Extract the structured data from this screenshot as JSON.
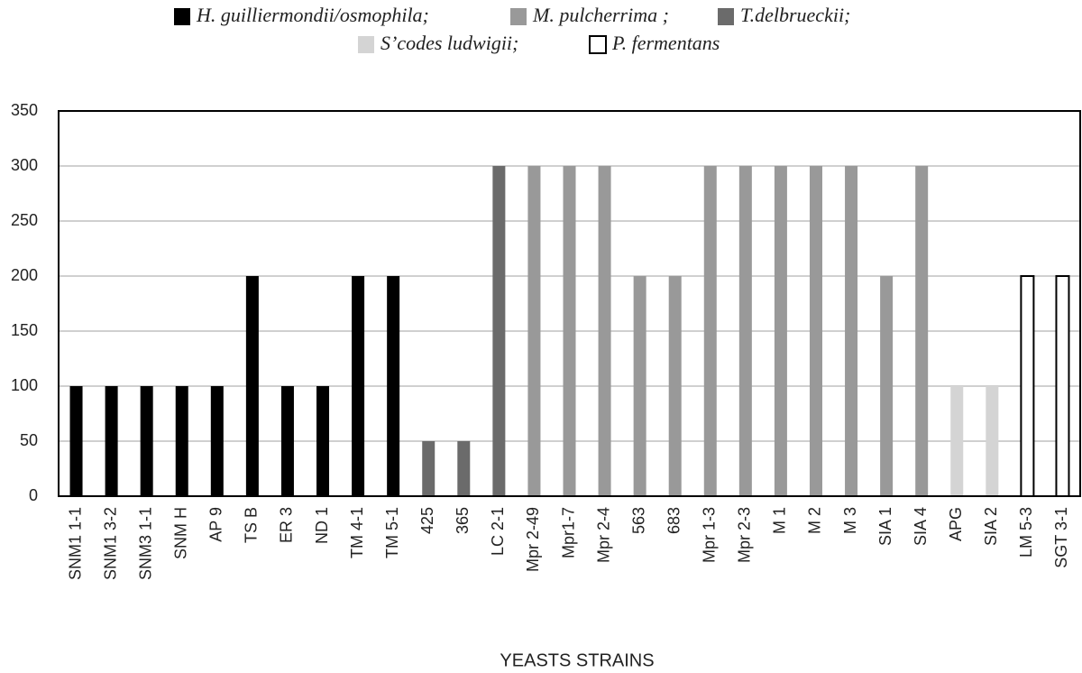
{
  "chart_data": {
    "type": "bar",
    "x_label": "YEASTS STRAINS",
    "categories": [
      "SNM1 1-1",
      "SNM1 3-2",
      "SNM3 1-1",
      "SNM H",
      "AP 9",
      "TS B",
      "ER 3",
      "ND 1",
      "TM 4-1",
      "TM 5-1",
      "425",
      "365",
      "LC 2-1",
      "Mpr 2-49",
      "Mpr1-7",
      "Mpr 2-4",
      "563",
      "683",
      "Mpr 1-3",
      "Mpr 2-3",
      "M 1",
      "M 2",
      "M 3",
      "SIA 1",
      "SIA 4",
      "APG",
      "SIA 2",
      "LM 5-3",
      "SGT 3-1"
    ],
    "series": [
      {
        "name": "H. guilliermondii/osmophila;",
        "color": "#000000",
        "values": [
          100,
          100,
          100,
          100,
          100,
          200,
          100,
          100,
          200,
          200,
          null,
          null,
          null,
          null,
          null,
          null,
          null,
          null,
          null,
          null,
          null,
          null,
          null,
          null,
          null,
          null,
          null,
          null,
          null
        ]
      },
      {
        "name": "M. pulcherrima ;",
        "color": "#999999",
        "values": [
          null,
          null,
          null,
          null,
          null,
          null,
          null,
          null,
          null,
          null,
          null,
          null,
          null,
          300,
          300,
          300,
          200,
          200,
          300,
          300,
          300,
          300,
          300,
          200,
          300,
          null,
          null,
          null,
          null
        ]
      },
      {
        "name": "T.delbrueckii;",
        "color": "#6b6b6b",
        "values": [
          null,
          null,
          null,
          null,
          null,
          null,
          null,
          null,
          null,
          null,
          50,
          50,
          300,
          null,
          null,
          null,
          null,
          null,
          null,
          null,
          null,
          null,
          null,
          null,
          null,
          null,
          null,
          null,
          null
        ]
      },
      {
        "name": "S’codes ludwigii;",
        "color": "#d4d4d4",
        "values": [
          null,
          null,
          null,
          null,
          null,
          null,
          null,
          null,
          null,
          null,
          null,
          null,
          null,
          null,
          null,
          null,
          null,
          null,
          null,
          null,
          null,
          null,
          null,
          null,
          null,
          100,
          100,
          null,
          null
        ]
      },
      {
        "name": "P. fermentans",
        "color": "#ffffff",
        "edgecolor": "#000000",
        "values": [
          null,
          null,
          null,
          null,
          null,
          null,
          null,
          null,
          null,
          null,
          null,
          null,
          null,
          null,
          null,
          null,
          null,
          null,
          null,
          null,
          null,
          null,
          null,
          null,
          null,
          null,
          null,
          200,
          200
        ]
      }
    ],
    "ylim": [
      0,
      350
    ],
    "yticks": [
      0,
      50,
      100,
      150,
      200,
      250,
      300,
      350
    ],
    "grid": true
  }
}
